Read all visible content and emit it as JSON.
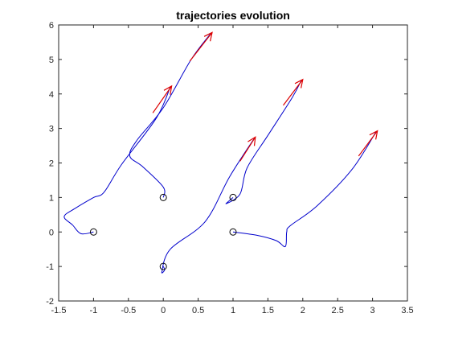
{
  "chart_data": {
    "type": "line",
    "title": "trajectories evolution",
    "xlabel": "",
    "ylabel": "",
    "xlim": [
      -1.5,
      3.5
    ],
    "ylim": [
      -2,
      6
    ],
    "xticks": [
      -1.5,
      -1,
      -0.5,
      0,
      0.5,
      1,
      1.5,
      2,
      2.5,
      3,
      3.5
    ],
    "yticks": [
      -2,
      -1,
      0,
      1,
      2,
      3,
      4,
      5,
      6
    ],
    "xtick_labels": [
      "-1.5",
      "-1",
      "-0.5",
      "0",
      "0.5",
      "1",
      "1.5",
      "2",
      "2.5",
      "3",
      "3.5"
    ],
    "ytick_labels": [
      "-2",
      "-1",
      "0",
      "1",
      "2",
      "3",
      "4",
      "5",
      "6"
    ],
    "grid": false,
    "legend": "none",
    "colors": {
      "trajectory": "#0000cc",
      "arrow": "#dd0000",
      "marker": "#000000",
      "axes": "#262626"
    },
    "series": [
      {
        "start": [
          -1,
          0
        ],
        "points": [
          [
            -1,
            0
          ],
          [
            -1.18,
            -0.05
          ],
          [
            -1.3,
            0.2
          ],
          [
            -1.42,
            0.45
          ],
          [
            -1.25,
            0.7
          ],
          [
            -1.0,
            1.0
          ],
          [
            -0.85,
            1.15
          ],
          [
            -0.6,
            1.95
          ],
          [
            -0.1,
            3.3
          ],
          [
            0.1,
            4.2
          ]
        ],
        "arrow": {
          "from": [
            -0.15,
            3.45
          ],
          "to": [
            0.12,
            4.23
          ]
        }
      },
      {
        "start": [
          0,
          1
        ],
        "points": [
          [
            0,
            1
          ],
          [
            0.0,
            1.3
          ],
          [
            -0.3,
            1.9
          ],
          [
            -0.48,
            2.2
          ],
          [
            -0.38,
            2.65
          ],
          [
            0.0,
            3.6
          ],
          [
            0.4,
            5.0
          ],
          [
            0.68,
            5.75
          ]
        ],
        "arrow": {
          "from": [
            0.38,
            4.95
          ],
          "to": [
            0.7,
            5.78
          ]
        }
      },
      {
        "start": [
          0,
          -1
        ],
        "points": [
          [
            0,
            -1
          ],
          [
            0.02,
            -1.1
          ],
          [
            -0.02,
            -1.15
          ],
          [
            0.1,
            -0.5
          ],
          [
            0.6,
            0.3
          ],
          [
            0.95,
            1.6
          ],
          [
            1.3,
            2.7
          ]
        ],
        "arrow": {
          "from": [
            1.1,
            2.05
          ],
          "to": [
            1.32,
            2.75
          ]
        }
      },
      {
        "start": [
          1,
          1
        ],
        "points": [
          [
            1,
            1
          ],
          [
            0.9,
            0.82
          ],
          [
            1.1,
            1.1
          ],
          [
            1.2,
            1.85
          ],
          [
            1.5,
            2.8
          ],
          [
            1.85,
            3.9
          ],
          [
            1.98,
            4.4
          ]
        ],
        "arrow": {
          "from": [
            1.72,
            3.67
          ],
          "to": [
            2.0,
            4.42
          ]
        }
      },
      {
        "start": [
          1,
          0
        ],
        "points": [
          [
            1,
            0
          ],
          [
            1.35,
            -0.1
          ],
          [
            1.62,
            -0.25
          ],
          [
            1.75,
            -0.42
          ],
          [
            1.77,
            0.0
          ],
          [
            1.82,
            0.18
          ],
          [
            2.2,
            0.75
          ],
          [
            2.7,
            1.8
          ],
          [
            3.05,
            2.9
          ]
        ],
        "arrow": {
          "from": [
            2.8,
            2.2
          ],
          "to": [
            3.07,
            2.93
          ]
        }
      }
    ]
  }
}
